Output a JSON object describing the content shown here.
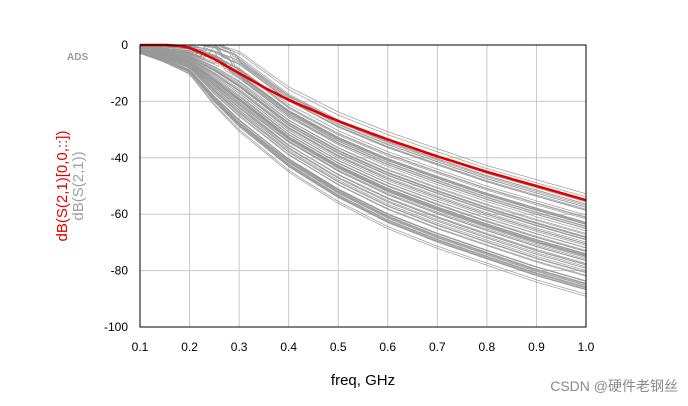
{
  "chart_data": {
    "type": "line",
    "brand_label": "ADS",
    "xlabel": "freq, GHz",
    "ylabel_primary": "dB(S(2,1)[0,0,::])",
    "ylabel_secondary": "dB(S(2,1))",
    "xlim": [
      0.1,
      1.0
    ],
    "ylim": [
      -100,
      0
    ],
    "xticks": [
      "0.1",
      "0.2",
      "0.3",
      "0.4",
      "0.5",
      "0.6",
      "0.7",
      "0.8",
      "0.9",
      "1.0"
    ],
    "yticks": [
      "0",
      "-20",
      "-40",
      "-60",
      "-80",
      "-100"
    ],
    "grid": true,
    "series": [
      {
        "name": "dB(S(2,1)[0,0,::])",
        "color": "#e00000",
        "x": [
          0.1,
          0.15,
          0.18,
          0.2,
          0.22,
          0.25,
          0.3,
          0.35,
          0.4,
          0.5,
          0.6,
          0.7,
          0.8,
          0.9,
          1.0
        ],
        "values": [
          0,
          0,
          -0.3,
          -1,
          -2.5,
          -5,
          -10,
          -15,
          -19.5,
          -27,
          -33.5,
          -39.5,
          -45,
          -50,
          -55
        ]
      }
    ],
    "monte_carlo": {
      "name": "dB(S(2,1))",
      "color": "#999999",
      "count": 90,
      "band_x": [
        0.1,
        0.15,
        0.2,
        0.25,
        0.3,
        0.4,
        0.5,
        0.6,
        0.7,
        0.8,
        0.9,
        1.0
      ],
      "band_upper": [
        0,
        0,
        0,
        0,
        -3,
        -16,
        -25,
        -32,
        -38,
        -44,
        -49,
        -54
      ],
      "band_lower": [
        -3,
        -6,
        -10,
        -21,
        -30,
        -44,
        -55,
        -64,
        -71,
        -77,
        -83,
        -88
      ]
    }
  },
  "watermark": "CSDN @硬件老钢丝"
}
